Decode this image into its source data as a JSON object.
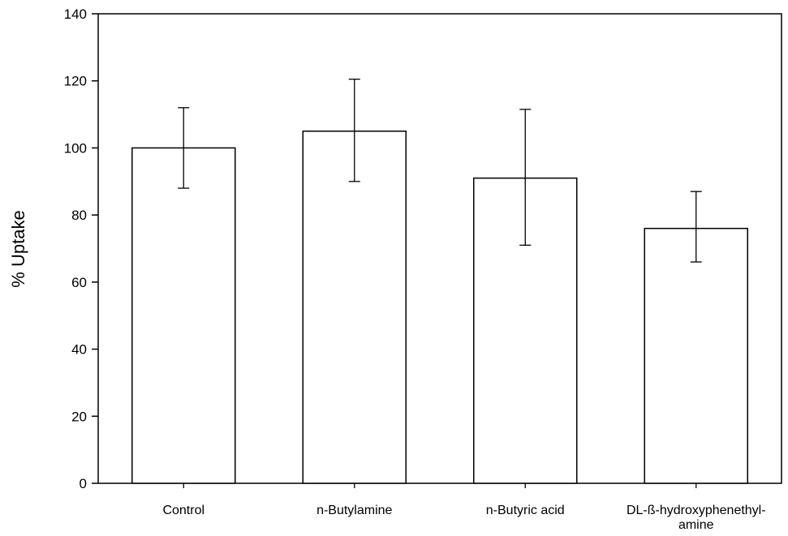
{
  "chart_data": {
    "type": "bar",
    "title": "",
    "xlabel": "",
    "ylabel": "% Uptake",
    "ylim": [
      0,
      140
    ],
    "yticks": [
      0,
      20,
      40,
      60,
      80,
      100,
      120,
      140
    ],
    "grid": false,
    "legend": "none",
    "categories": [
      [
        "Control"
      ],
      [
        "n-Butylamine"
      ],
      [
        "n-Butyric acid"
      ],
      [
        "DL-ß-hydroxyphenethyl-",
        "amine"
      ]
    ],
    "series": [
      {
        "values": [
          100,
          105,
          91,
          76
        ],
        "error_low": [
          88,
          90,
          71,
          66
        ],
        "error_high": [
          112,
          120.5,
          111.5,
          87
        ]
      }
    ],
    "colors": {
      "bar_fill": "#ffffff",
      "stroke": "#000000"
    }
  }
}
